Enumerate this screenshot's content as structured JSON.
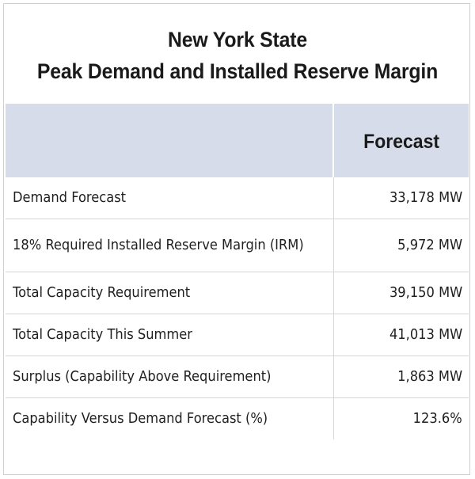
{
  "title": {
    "line1": "New York State",
    "line2": "Peak Demand and Installed Reserve Margin"
  },
  "table": {
    "header": {
      "label_col": "",
      "value_col": "Forecast"
    },
    "rows": [
      {
        "label": "Demand Forecast",
        "value": "33,178 MW"
      },
      {
        "label": "18% Required Installed Reserve Margin (IRM)",
        "value": "5,972 MW"
      },
      {
        "label": "Total Capacity Requirement",
        "value": "39,150 MW"
      },
      {
        "label": "Total Capacity This Summer",
        "value": "41,013 MW"
      },
      {
        "label": "Surplus (Capability Above Requirement)",
        "value": "1,863 MW"
      },
      {
        "label": "Capability Versus Demand Forecast (%)",
        "value": "123.6%"
      }
    ]
  },
  "colors": {
    "header_bg": "#d7dceb",
    "grid": "#d6d6d6",
    "border": "#cfcfcf"
  }
}
